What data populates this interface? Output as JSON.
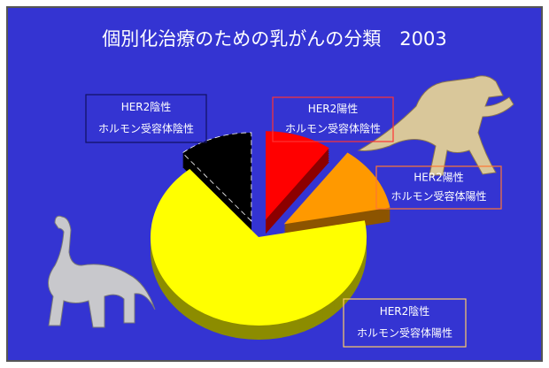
{
  "chart_data": {
    "type": "pie",
    "title": "個別化治療のための乳がんの分類　2003",
    "categories": [
      [
        "HER2陽性",
        "ホルモン受容体陰性"
      ],
      [
        "HER2陽性",
        "ホルモン受容体陽性"
      ],
      [
        "HER2陰性",
        "ホルモン受容体陽性"
      ],
      [
        "HER2陰性",
        "ホルモン受容体陰性"
      ]
    ],
    "values": [
      10,
      12,
      67,
      11
    ],
    "colors": [
      "#ff0000",
      "#ff9900",
      "#ffff00",
      "#000000"
    ]
  }
}
